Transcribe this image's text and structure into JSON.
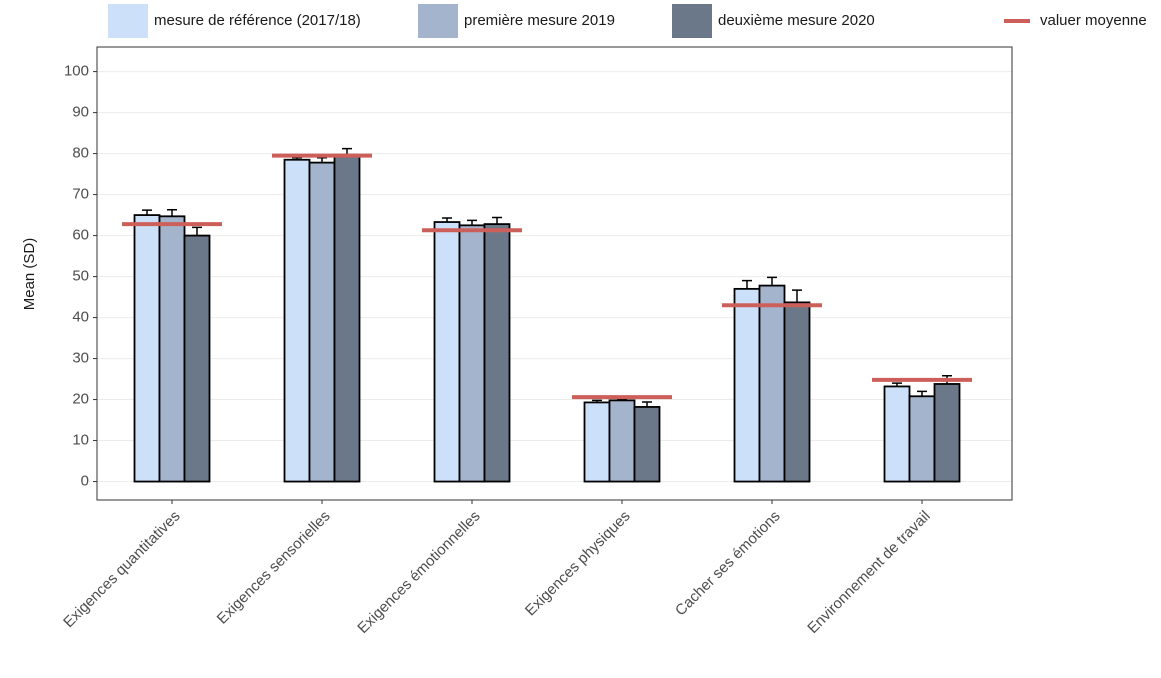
{
  "chart_data": {
    "type": "bar",
    "y_label": "Mean (SD)",
    "categories": [
      "Exigences quantitatives",
      "Exigences sensorielles",
      "Exigences émotionnelles",
      "Exigences physiques",
      "Cacher ses émotions",
      "Environnement de travail"
    ],
    "series": [
      {
        "name": "mesure de référence (2017/18)",
        "color": "#cce0fa",
        "values": [
          65,
          78.5,
          63.3,
          19.3,
          47,
          23.2
        ],
        "errors": [
          1.2,
          0.5,
          1,
          0.5,
          2,
          0.8
        ]
      },
      {
        "name": "première mesure 2019",
        "color": "#a3b4cc",
        "values": [
          64.7,
          77.8,
          62.5,
          19.8,
          47.8,
          20.8
        ],
        "errors": [
          1.6,
          1.2,
          1.2,
          0.3,
          2,
          1.2
        ]
      },
      {
        "name": "deuxième mesure 2020",
        "color": "#6b7889",
        "values": [
          60,
          79.7,
          62.8,
          18.2,
          43.7,
          23.8
        ],
        "errors": [
          2,
          1.5,
          1.6,
          1.2,
          3,
          2
        ]
      }
    ],
    "mean_line": {
      "name": "valuer moyenne",
      "color": "#cd5f5a",
      "values": [
        62.8,
        79.5,
        61.3,
        20.6,
        43,
        24.8
      ]
    },
    "ylim": [
      -4.5,
      106
    ],
    "yticks": [
      0,
      10,
      20,
      30,
      40,
      50,
      60,
      70,
      80,
      90,
      100
    ],
    "grid": true
  }
}
